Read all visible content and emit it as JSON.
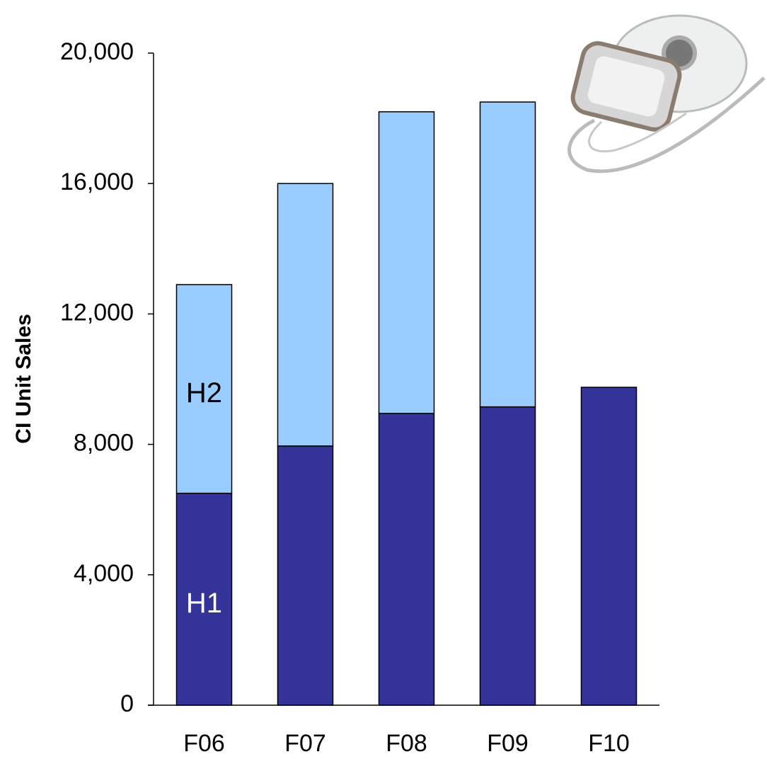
{
  "chart_data": {
    "type": "stacked-bar",
    "y_label": "CI Unit Sales",
    "categories": [
      "F06",
      "F07",
      "F08",
      "F09",
      "F10"
    ],
    "series": [
      {
        "name": "H1",
        "color": "#333399",
        "label_color": "#ffffff",
        "values": [
          6500,
          7950,
          8950,
          9150,
          9750
        ]
      },
      {
        "name": "H2",
        "color": "#99ccff",
        "label_color": "#000000",
        "values": [
          6400,
          8050,
          9250,
          9350,
          null
        ]
      }
    ],
    "ylim": [
      0,
      20000
    ],
    "yticks": [
      0,
      {
        "value": 4000,
        "label": "4,000"
      },
      {
        "value": 8000,
        "label": "8,000"
      },
      {
        "value": 12000,
        "label": "12,000"
      },
      {
        "value": 16000,
        "label": "16,000"
      },
      {
        "value": 20000,
        "label": "20,000"
      }
    ],
    "grid": false
  }
}
